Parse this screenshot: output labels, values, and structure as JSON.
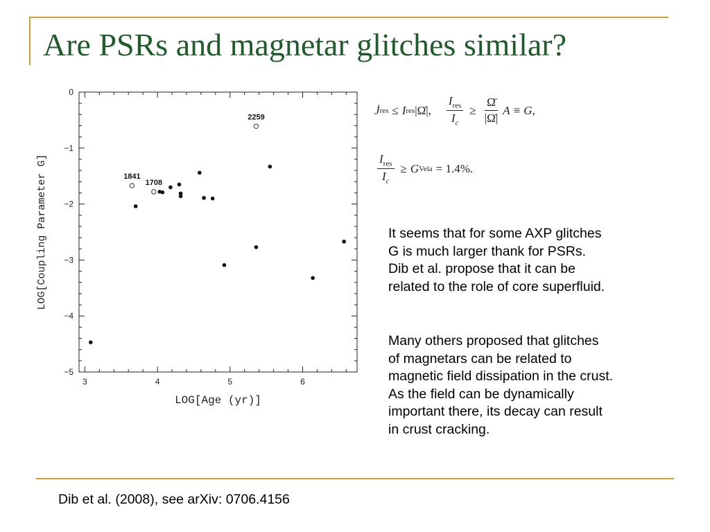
{
  "slide": {
    "title": "Are PSRs and magnetar glitches similar?",
    "paragraph1": [
      "It seems that for some AXP glitches",
      "G is much larger thank for PSRs.",
      "Dib et al. propose that it can be",
      "related to the role of core superfluid."
    ],
    "paragraph2": [
      "Many others proposed that glitches",
      "of magnetars can be related to",
      "magnetic field dissipation in the crust.",
      "As the field can be dynamically",
      "important there, its decay can result",
      "in crust cracking."
    ],
    "footer": "Dib et al. (2008), see arXiv: 0706.4156"
  },
  "equations": {
    "eq1_ineq": "≤",
    "eq1_ge": "≥",
    "eq1_equiv": "≡",
    "eq2_value": "= 1.4%."
  },
  "chart_data": {
    "type": "scatter",
    "xlabel": "LOG[Age (yr)]",
    "ylabel": "LOG[Coupling Parameter  G]",
    "xlim": [
      2.92,
      6.75
    ],
    "ylim": [
      -5,
      0
    ],
    "xticks": [
      3,
      4,
      5,
      6
    ],
    "yticks": [
      0,
      -1,
      -2,
      -3,
      -4,
      -5
    ],
    "series": [
      {
        "marker": "filled",
        "x": [
          3.08,
          3.7,
          4.03,
          4.07,
          4.18,
          4.3,
          4.32,
          4.32,
          4.58,
          4.64,
          4.76,
          4.92,
          5.36,
          5.55,
          6.14,
          6.57
        ],
        "y": [
          -4.47,
          -2.04,
          -1.78,
          -1.79,
          -1.7,
          -1.65,
          -1.81,
          -1.86,
          -1.44,
          -1.89,
          -1.9,
          -3.09,
          -2.77,
          -1.33,
          -3.32,
          -2.67
        ]
      },
      {
        "marker": "open",
        "x": [
          3.65,
          3.95,
          5.36
        ],
        "y": [
          -1.67,
          -1.78,
          -0.61
        ],
        "labels": [
          "1841",
          "1708",
          "2259"
        ]
      }
    ]
  }
}
